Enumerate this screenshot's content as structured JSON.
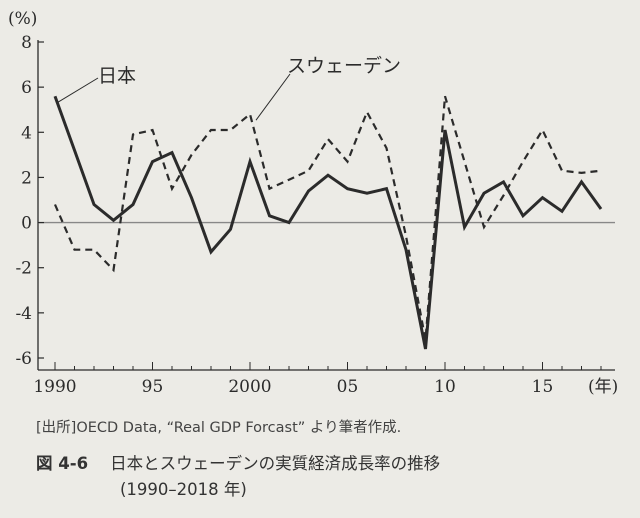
{
  "chart_data": {
    "type": "line",
    "ylabel": "(%)",
    "xlabel": "(年)",
    "ylim": [
      -6,
      8
    ],
    "xlim": [
      1990,
      2018
    ],
    "y_ticks": [
      8,
      6,
      4,
      2,
      0,
      -2,
      -4,
      -6
    ],
    "y_tick_labels": [
      "8",
      "6",
      "4",
      "2",
      "0",
      "-2",
      "-4",
      "-6"
    ],
    "x_ticks": [
      1990,
      1995,
      2000,
      2005,
      2010,
      2015
    ],
    "x_tick_labels": [
      "1990",
      "95",
      "2000",
      "05",
      "10",
      "15"
    ],
    "zero_line": true,
    "grid": false,
    "legend": "inline labels",
    "series": [
      {
        "name": "日本",
        "style": "solid",
        "x": [
          1990,
          1991,
          1992,
          1993,
          1994,
          1995,
          1996,
          1997,
          1998,
          1999,
          2000,
          2001,
          2002,
          2003,
          2004,
          2005,
          2006,
          2007,
          2008,
          2009,
          2010,
          2011,
          2012,
          2013,
          2014,
          2015,
          2016,
          2017,
          2018
        ],
        "values": [
          5.6,
          3.2,
          0.8,
          0.1,
          0.8,
          2.7,
          3.1,
          1.1,
          -1.3,
          -0.3,
          2.7,
          0.3,
          0.0,
          1.4,
          2.1,
          1.5,
          1.3,
          1.5,
          -1.2,
          -5.6,
          4.1,
          -0.2,
          1.3,
          1.8,
          0.3,
          1.1,
          0.5,
          1.8,
          0.6
        ]
      },
      {
        "name": "スウェーデン",
        "style": "dashed",
        "x": [
          1990,
          1991,
          1992,
          1993,
          1994,
          1995,
          1996,
          1997,
          1998,
          1999,
          2000,
          2001,
          2002,
          2003,
          2004,
          2005,
          2006,
          2007,
          2008,
          2009,
          2010,
          2011,
          2012,
          2013,
          2014,
          2015,
          2016,
          2017,
          2018
        ],
        "values": [
          0.8,
          -1.2,
          -1.2,
          -2.1,
          3.9,
          4.1,
          1.5,
          3.0,
          4.1,
          4.1,
          4.8,
          1.5,
          1.9,
          2.3,
          3.7,
          2.7,
          4.9,
          3.3,
          -0.6,
          -5.2,
          5.6,
          2.7,
          -0.2,
          1.2,
          2.7,
          4.1,
          2.3,
          2.2,
          2.3
        ]
      }
    ]
  },
  "source_note": "[出所]OECD Data, “Real GDP Forcast” より筆者作成.",
  "caption": {
    "number": "図 4-6",
    "title": "日本とスウェーデンの実質経済成長率の推移",
    "subtitle": "(1990–2018 年)"
  },
  "colors": {
    "line": "#2b2b2b",
    "zero_line": "#888888",
    "background": "#ecebe6"
  }
}
